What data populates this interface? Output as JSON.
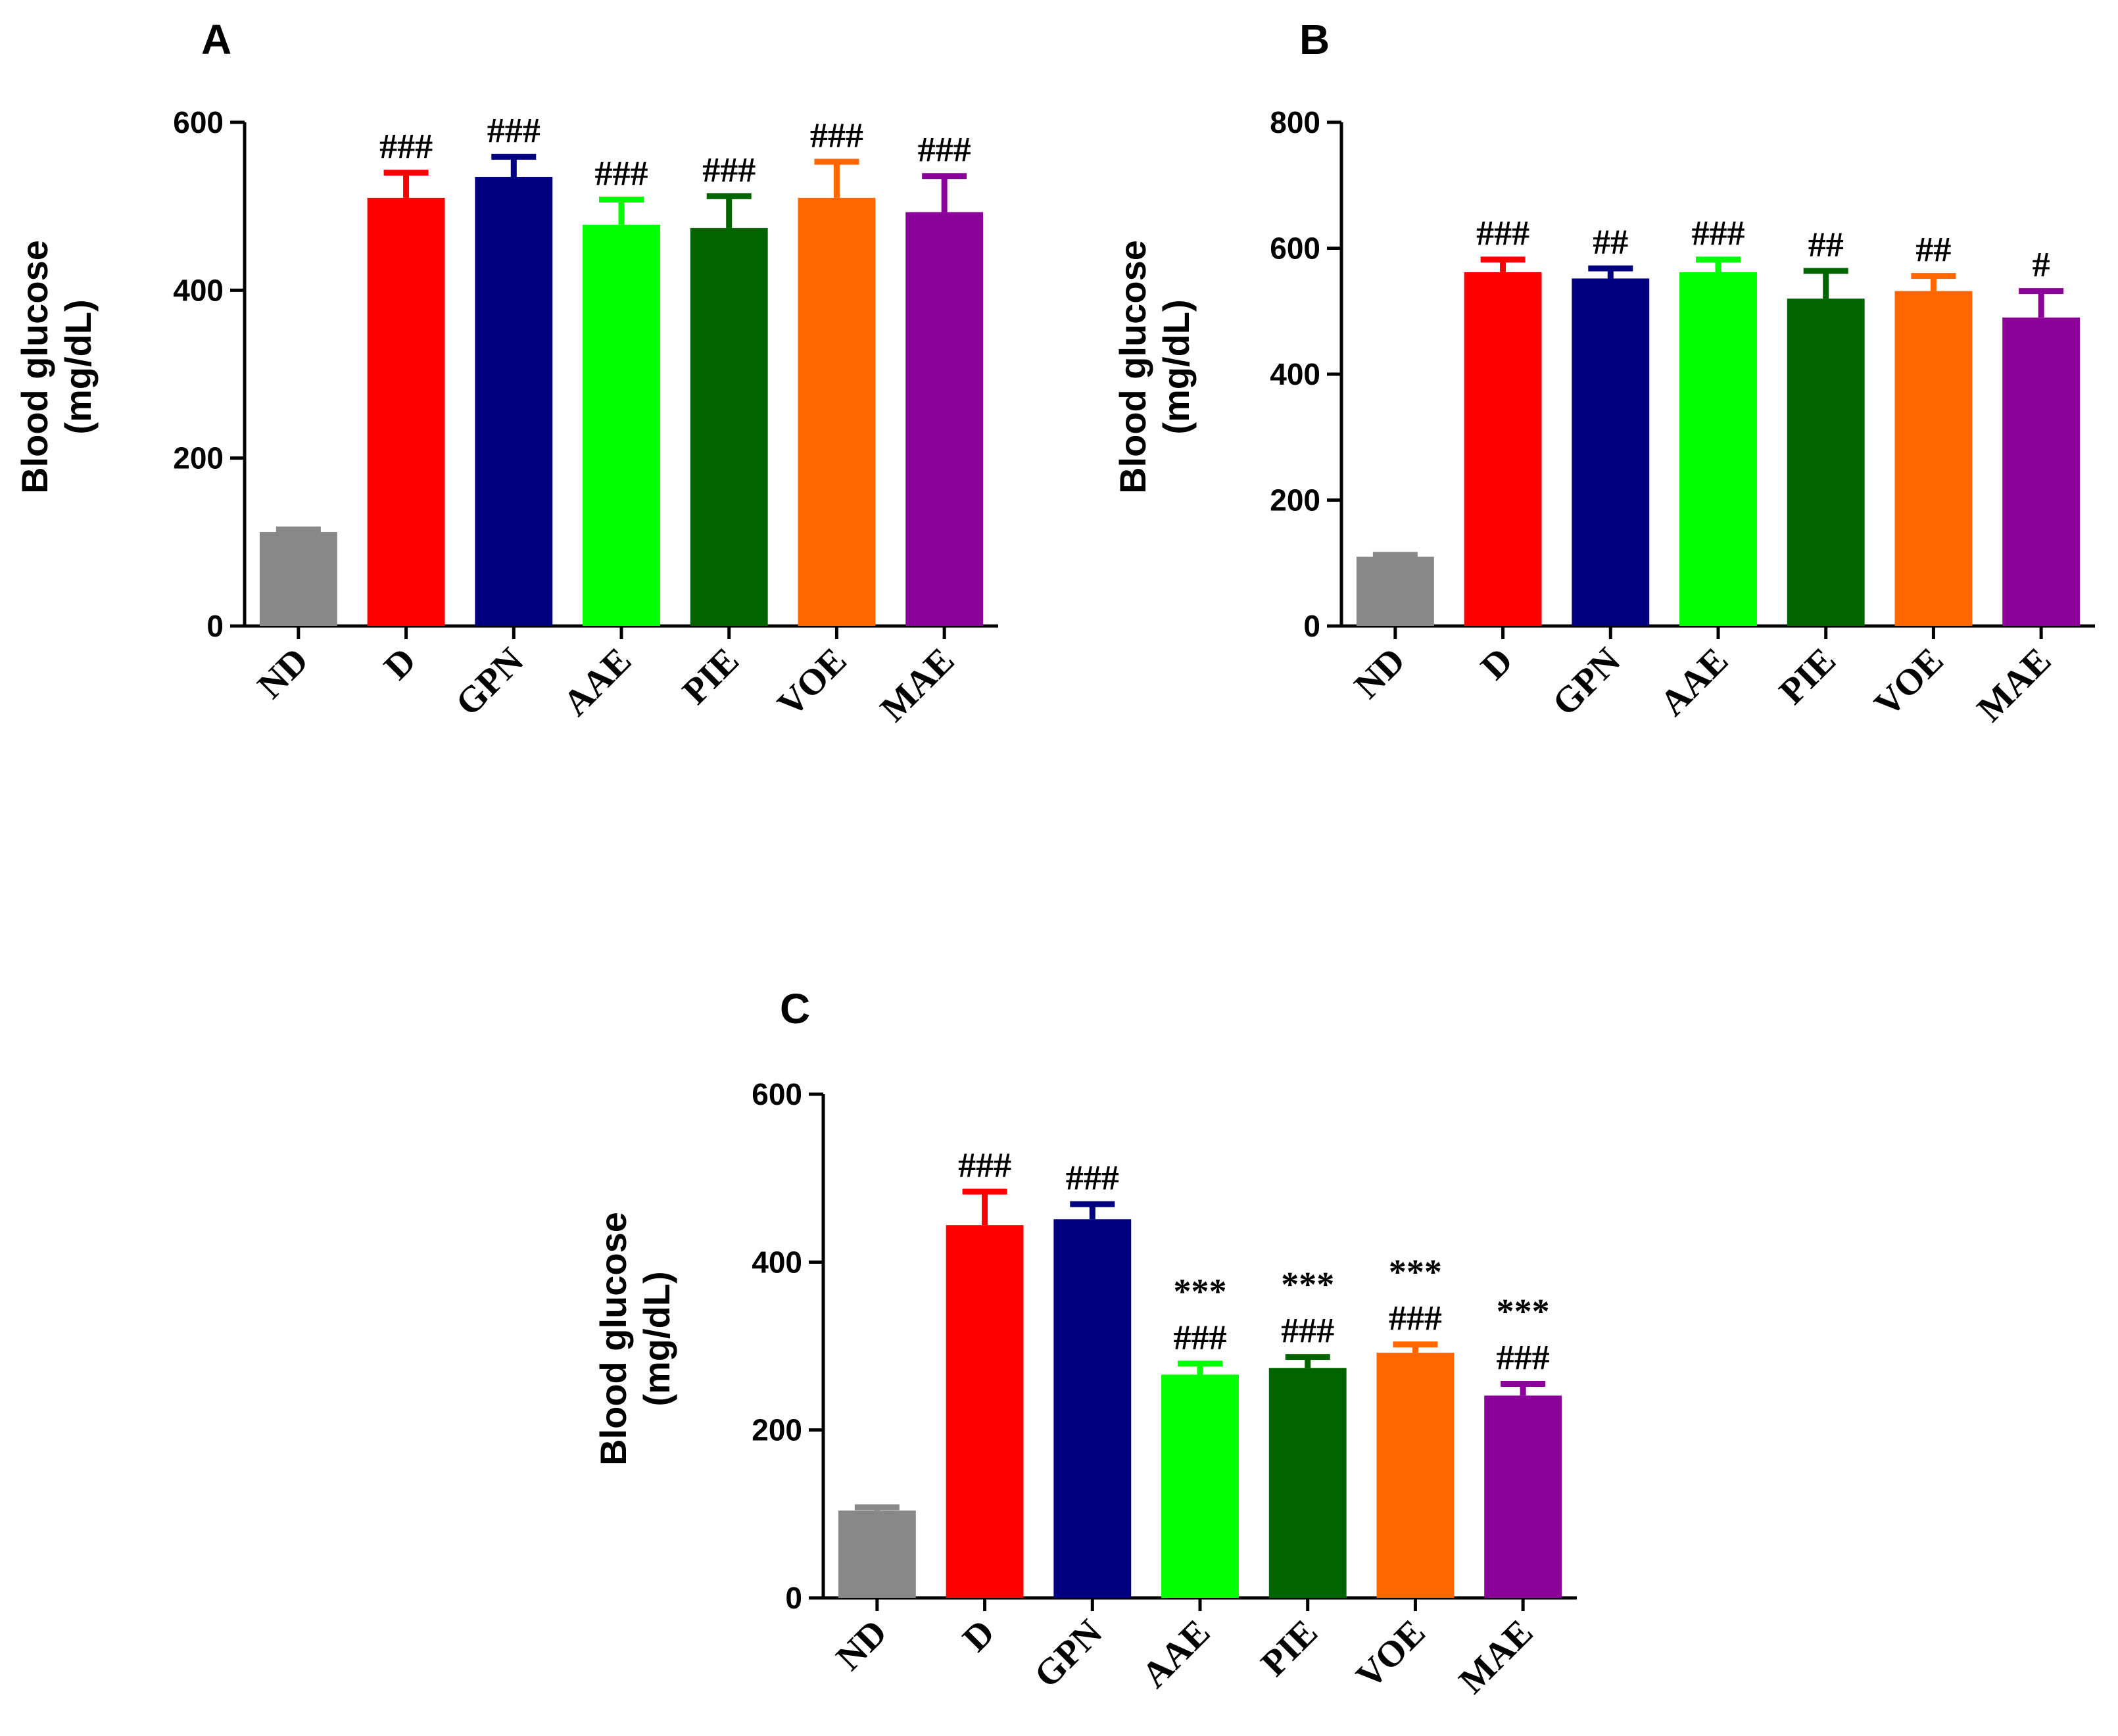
{
  "chart_data": [
    {
      "type": "bar",
      "panel": "A",
      "title": "",
      "xlabel": "",
      "ylabel": [
        "Blood glucose",
        "(mg/dL)"
      ],
      "ylim": [
        0,
        600
      ],
      "yticks": [
        0,
        200,
        400,
        600
      ],
      "categories": [
        "ND",
        "D",
        "GPN",
        "AAE",
        "PIE",
        "VOE",
        "MAE"
      ],
      "values": [
        112,
        510,
        535,
        478,
        474,
        510,
        493
      ],
      "errors": [
        3,
        30,
        24,
        30,
        38,
        43,
        43
      ],
      "colors": [
        "#888888",
        "#ff0000",
        "#000080",
        "#00ff00",
        "#006400",
        "#ff6600",
        "#8b0099"
      ],
      "annotations": [
        [],
        [
          "###"
        ],
        [
          "###"
        ],
        [
          "###"
        ],
        [
          "###"
        ],
        [
          "###"
        ],
        [
          "###"
        ]
      ]
    },
    {
      "type": "bar",
      "panel": "B",
      "title": "",
      "xlabel": "",
      "ylabel": [
        "Blood glucose",
        "(mg/dL)"
      ],
      "ylim": [
        0,
        800
      ],
      "yticks": [
        0,
        200,
        400,
        600,
        800
      ],
      "categories": [
        "ND",
        "D",
        "GPN",
        "AAE",
        "PIE",
        "VOE",
        "MAE"
      ],
      "values": [
        110,
        562,
        552,
        562,
        520,
        532,
        490
      ],
      "errors": [
        3,
        20,
        16,
        20,
        44,
        24,
        42
      ],
      "colors": [
        "#888888",
        "#ff0000",
        "#000080",
        "#00ff00",
        "#006400",
        "#ff6600",
        "#8b0099"
      ],
      "annotations": [
        [],
        [
          "###"
        ],
        [
          "##"
        ],
        [
          "###"
        ],
        [
          "##"
        ],
        [
          "##"
        ],
        [
          "#"
        ]
      ]
    },
    {
      "type": "bar",
      "panel": "C",
      "title": "",
      "xlabel": "",
      "ylabel": [
        "Blood glucose",
        "(mg/dL)"
      ],
      "ylim": [
        0,
        600
      ],
      "yticks": [
        0,
        200,
        400,
        600
      ],
      "categories": [
        "ND",
        "D",
        "GPN",
        "AAE",
        "PIE",
        "VOE",
        "MAE"
      ],
      "values": [
        104,
        444,
        451,
        266,
        274,
        292,
        241
      ],
      "errors": [
        4,
        40,
        18,
        13,
        13,
        10,
        14
      ],
      "colors": [
        "#888888",
        "#ff0000",
        "#000080",
        "#00ff00",
        "#006400",
        "#ff6600",
        "#8b0099"
      ],
      "annotations": [
        [],
        [
          "###"
        ],
        [
          "###"
        ],
        [
          "***",
          "###"
        ],
        [
          "***",
          "###"
        ],
        [
          "***",
          "###"
        ],
        [
          "***",
          "###"
        ]
      ]
    }
  ]
}
